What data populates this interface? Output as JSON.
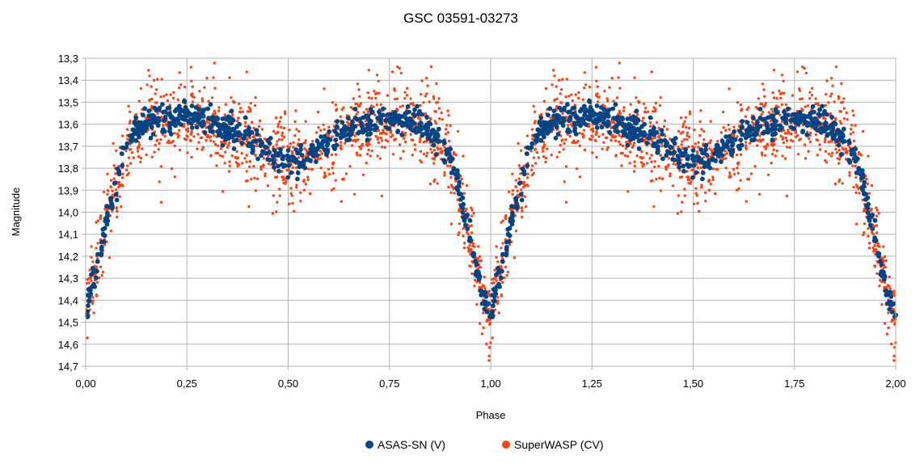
{
  "chart_data": {
    "type": "scatter",
    "title": "GSC 03591-03273",
    "xlabel": "Phase",
    "ylabel": "Magnitude",
    "xlim": [
      0,
      2
    ],
    "ylim": [
      13.3,
      14.7
    ],
    "y_inverted": true,
    "x_ticks": [
      "0,00",
      "0,25",
      "0,50",
      "0,75",
      "1,00",
      "1,25",
      "1,50",
      "1,75",
      "2,00"
    ],
    "y_ticks": [
      "13,3",
      "13,4",
      "13,5",
      "13,6",
      "13,7",
      "13,8",
      "13,9",
      "14,0",
      "14,1",
      "14,2",
      "14,3",
      "14,4",
      "14,5",
      "14,6",
      "14,7"
    ],
    "grid": true,
    "legend_position": "bottom",
    "light_curve_model": {
      "phase": [
        0.0,
        0.02,
        0.04,
        0.06,
        0.08,
        0.1,
        0.12,
        0.15,
        0.2,
        0.25,
        0.3,
        0.35,
        0.4,
        0.45,
        0.5,
        0.55,
        0.6,
        0.65,
        0.7,
        0.75,
        0.8,
        0.85,
        0.88,
        0.9,
        0.92,
        0.94,
        0.96,
        0.98,
        1.0
      ],
      "magnitude": [
        14.45,
        14.3,
        14.15,
        13.97,
        13.82,
        13.7,
        13.63,
        13.59,
        13.57,
        13.56,
        13.58,
        13.62,
        13.67,
        13.73,
        13.78,
        13.75,
        13.68,
        13.62,
        13.59,
        13.58,
        13.58,
        13.62,
        13.68,
        13.76,
        13.88,
        14.03,
        14.2,
        14.38,
        14.48
      ]
    },
    "series": [
      {
        "name": "ASAS-SN (V)",
        "color": "#004586",
        "marker": "circle",
        "count": 700,
        "scatter_sigma": 0.03
      },
      {
        "name": "SuperWASP (CV)",
        "color": "#ff420e",
        "marker": "circle",
        "count": 1300,
        "scatter_sigma": 0.09
      }
    ]
  }
}
